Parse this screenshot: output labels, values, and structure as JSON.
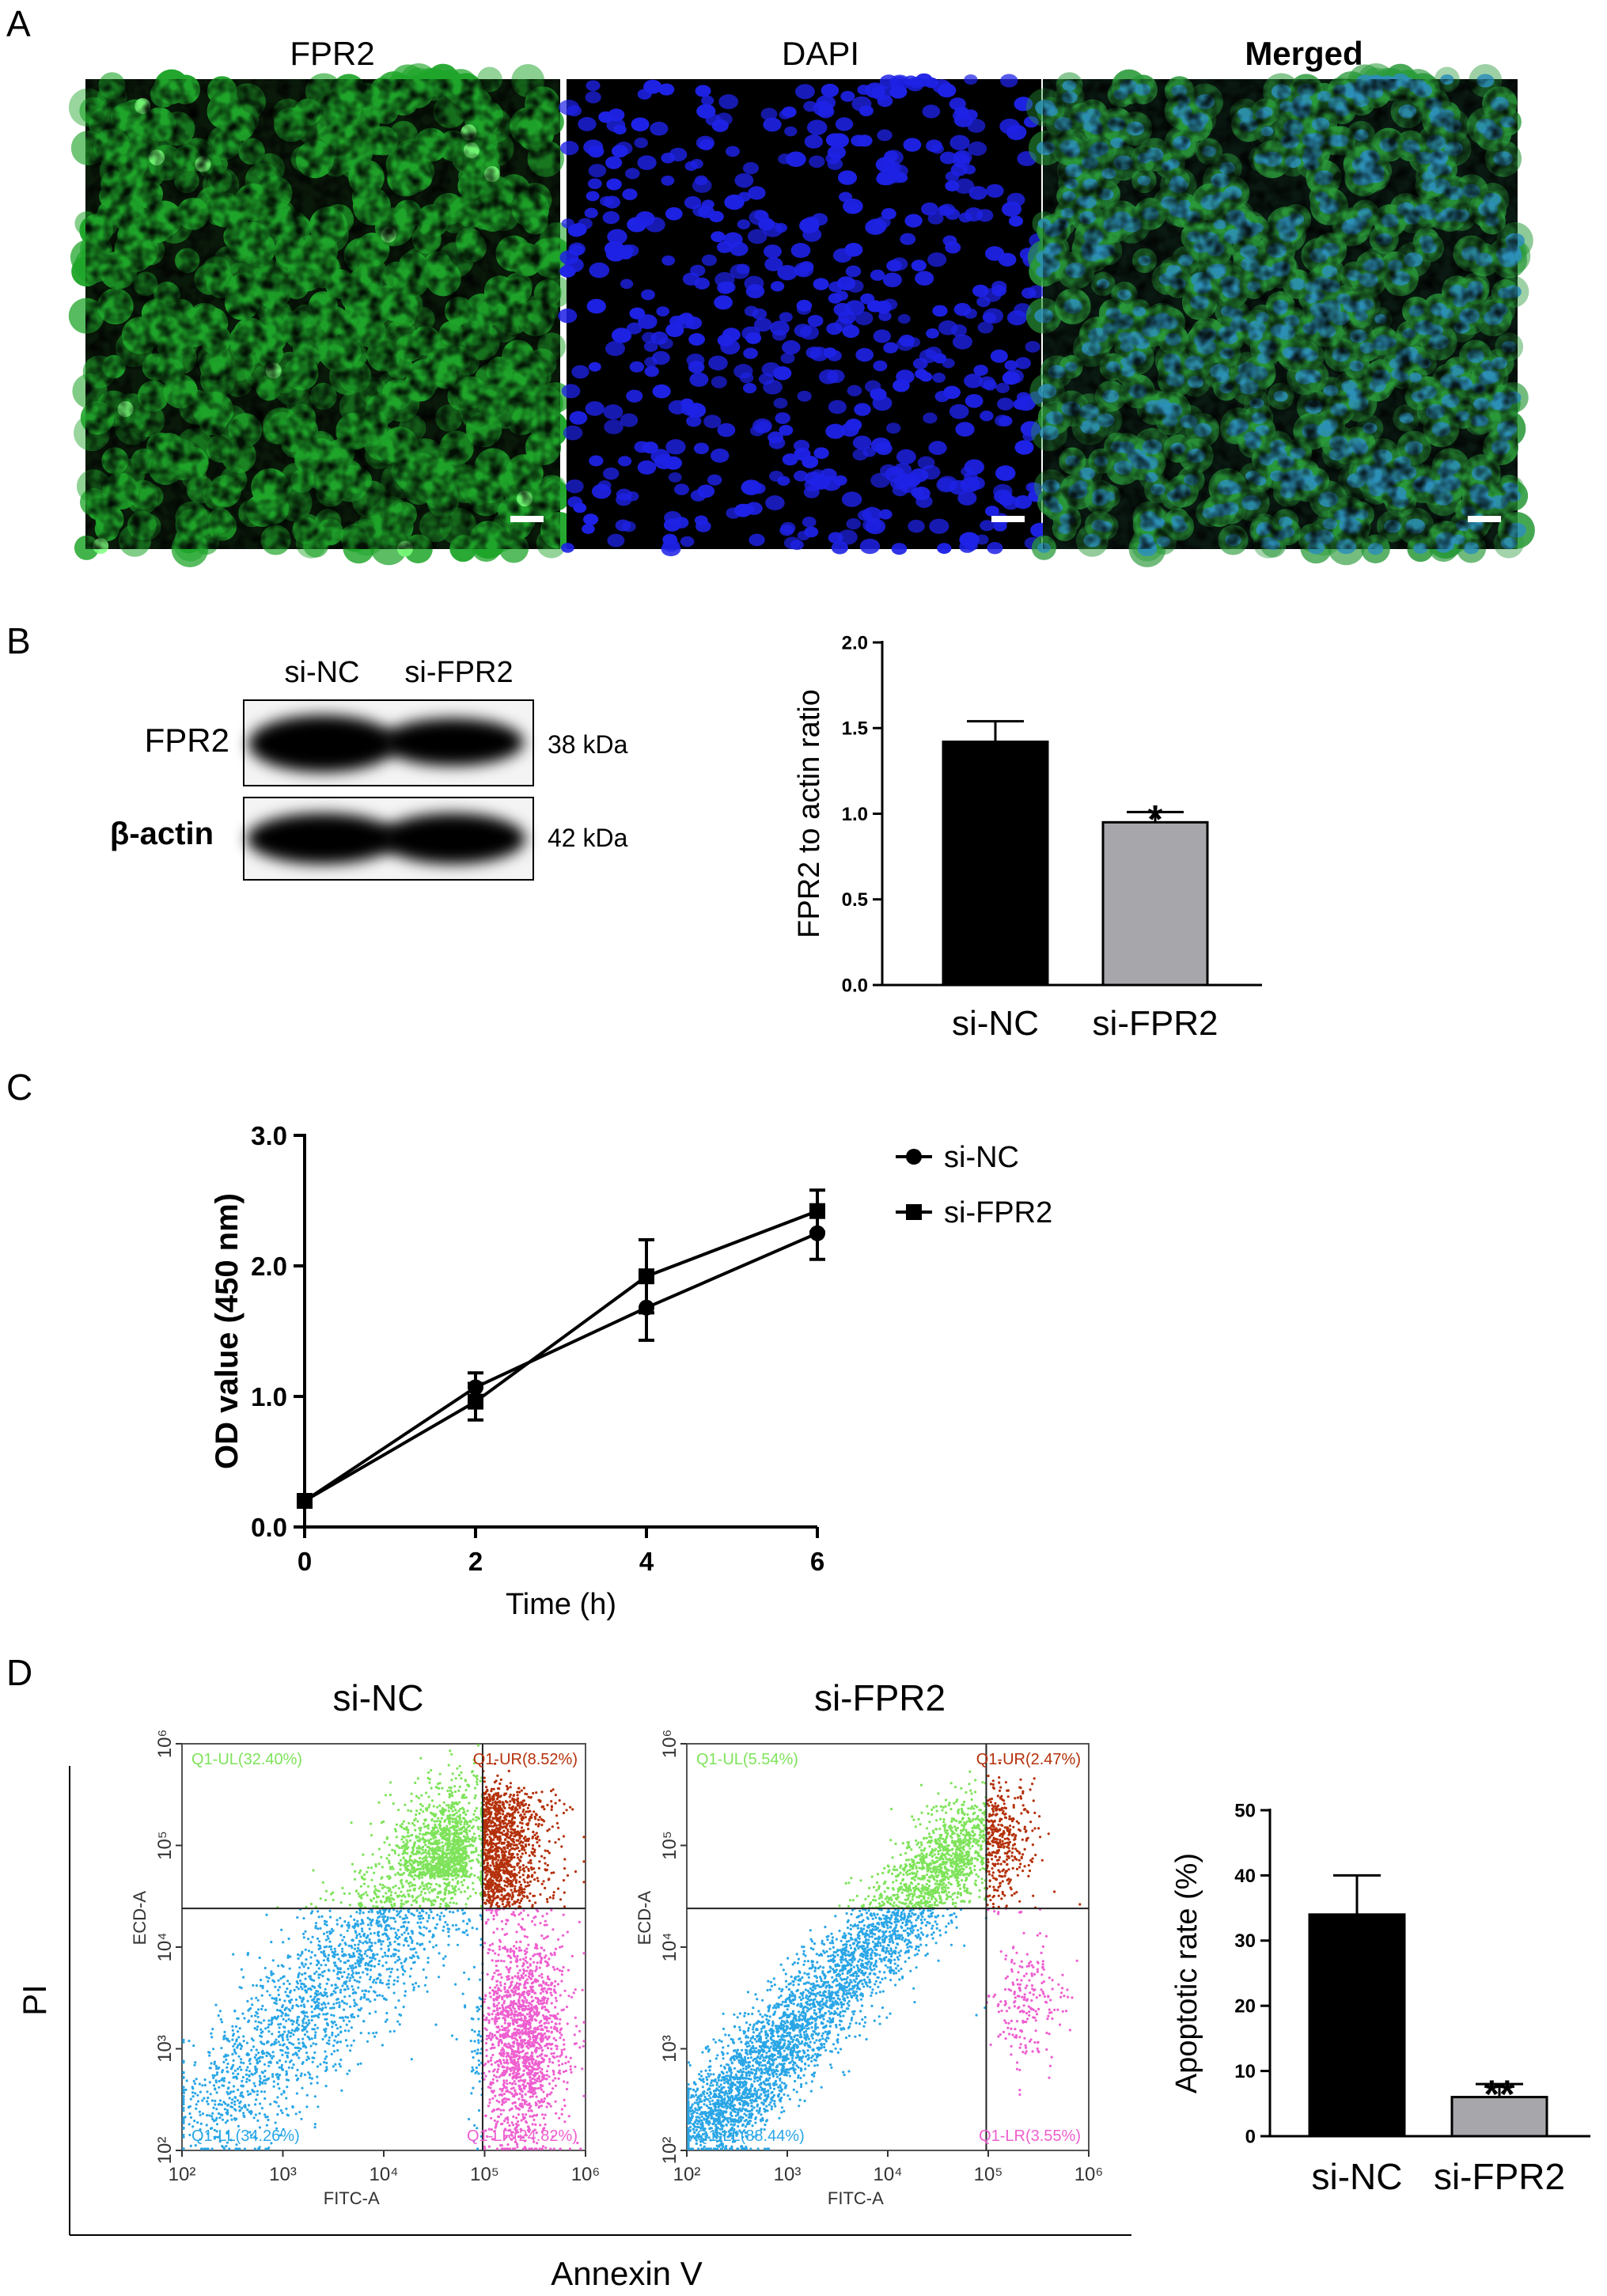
{
  "panels": {
    "A": {
      "letter": "A",
      "images": [
        {
          "label": "FPR2",
          "color": "#1fa52a"
        },
        {
          "label": "DAPI",
          "color": "#1e22e6"
        },
        {
          "label": "Merged",
          "color": "#2d8fb8"
        }
      ]
    },
    "B": {
      "letter": "B",
      "blot": {
        "lane_labels": [
          "si-NC",
          "si-FPR2"
        ],
        "rows": [
          {
            "protein": "FPR2",
            "size": "38 kDa"
          },
          {
            "protein": "β-actin",
            "size": "42 kDa"
          }
        ]
      }
    },
    "C": {
      "letter": "C"
    },
    "D": {
      "letter": "D",
      "flow_axis_y": "PI",
      "flow_axis_x": "Annexin V",
      "flow_plots": [
        {
          "title": "si-NC",
          "xaxis": "FITC-A",
          "yaxis": "ECD-A",
          "ticks": [
            "10²",
            "10³",
            "10⁴",
            "10⁵",
            "10⁶"
          ],
          "quadrants": {
            "UL": "Q1-UL(32.40%)",
            "UR": "Q1-UR(8.52%)",
            "LL": "Q1-LL(34.26%)",
            "LR": "Q1-LR(24.82%)"
          }
        },
        {
          "title": "si-FPR2",
          "xaxis": "FITC-A",
          "yaxis": "ECD-A",
          "ticks": [
            "10²",
            "10³",
            "10⁴",
            "10⁵",
            "10⁶"
          ],
          "quadrants": {
            "UL": "Q1-UL(5.54%)",
            "UR": "Q1-UR(2.47%)",
            "LL": "Q1-LL(88.44%)",
            "LR": "Q1-LR(3.55%)"
          }
        }
      ],
      "quadrant_colors": {
        "UL": "#7ee35a",
        "UR": "#b4300a",
        "LL": "#2aa6e6",
        "LR": "#ee5fd0"
      }
    }
  },
  "chart_data": [
    {
      "id": "B",
      "type": "bar",
      "categories": [
        "si-NC",
        "si-FPR2"
      ],
      "values": [
        1.42,
        0.95
      ],
      "errors": [
        0.12,
        0.06
      ],
      "annotations": [
        "",
        "*"
      ],
      "bar_colors": [
        "#000000",
        "#a7a7ab"
      ],
      "title": "",
      "xlabel": "",
      "ylabel": "FPR2 to actin ratio",
      "ylim": [
        0,
        2.0
      ],
      "yticks": [
        "0.0",
        "0.5",
        "1.0",
        "1.5",
        "2.0"
      ]
    },
    {
      "id": "C",
      "type": "line",
      "x": [
        0,
        2,
        4,
        6
      ],
      "series": [
        {
          "name": "si-NC",
          "marker": "circle",
          "values": [
            0.2,
            1.07,
            1.68,
            2.25
          ],
          "errors": [
            0.04,
            0.11,
            0.25,
            0.2
          ]
        },
        {
          "name": "si-FPR2",
          "marker": "square",
          "values": [
            0.2,
            0.96,
            1.92,
            2.42
          ],
          "errors": [
            0.04,
            0.14,
            0.28,
            0.16
          ]
        }
      ],
      "xlabel": "Time (h)",
      "ylabel": "OD value (450 nm)",
      "xlim": [
        0,
        6
      ],
      "ylim": [
        0,
        3.0
      ],
      "xticks": [
        "0",
        "2",
        "4",
        "6"
      ],
      "yticks": [
        "0.0",
        "1.0",
        "2.0",
        "3.0"
      ]
    },
    {
      "id": "D",
      "type": "bar",
      "categories": [
        "si-NC",
        "si-FPR2"
      ],
      "values": [
        34,
        6
      ],
      "errors": [
        6,
        2
      ],
      "annotations": [
        "",
        "**"
      ],
      "bar_colors": [
        "#000000",
        "#a7a7ab"
      ],
      "title": "",
      "xlabel": "",
      "ylabel": "Apoptotic rate (%)",
      "ylim": [
        0,
        50
      ],
      "yticks": [
        "0",
        "10",
        "20",
        "30",
        "40",
        "50"
      ]
    }
  ]
}
